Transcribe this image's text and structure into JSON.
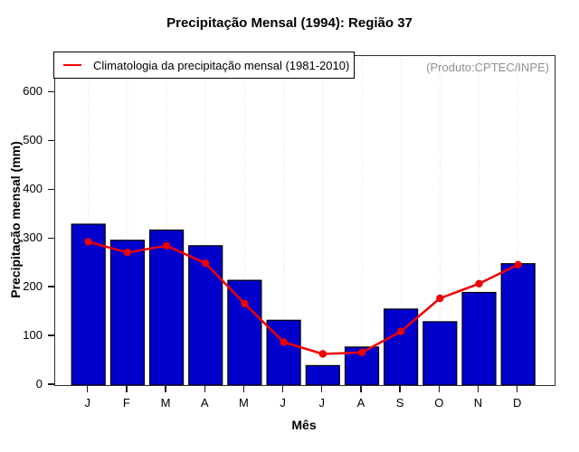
{
  "title": "Precipitação Mensal (1994): Região 37",
  "watermark": "(Produto:CPTEC/INPE)",
  "legend": {
    "label": "Climatologia da precipitação mensal (1981-2010)"
  },
  "colors": {
    "bar_fill": "#0000cd",
    "bar_stroke": "#000000",
    "line": "#ee0000",
    "grid": "#d6d6d6",
    "watermark": "#8f8f8f"
  },
  "chart_data": {
    "type": "bar",
    "title": "Precipitação Mensal (1994): Região 37",
    "xlabel": "Mês",
    "ylabel": "Precipitação mensal (mm)",
    "categories": [
      "J",
      "F",
      "M",
      "A",
      "M",
      "J",
      "J",
      "A",
      "S",
      "O",
      "N",
      "D"
    ],
    "series": [
      {
        "name": "Precipitação mensal 1994",
        "type": "bar",
        "color": "#0000cd",
        "values": [
          330,
          297,
          318,
          286,
          215,
          133,
          40,
          78,
          156,
          130,
          190,
          249
        ]
      },
      {
        "name": "Climatologia da precipitação mensal (1981-2010)",
        "type": "line",
        "color": "#ee0000",
        "values": [
          294,
          272,
          286,
          250,
          167,
          88,
          64,
          67,
          110,
          178,
          208,
          247
        ]
      }
    ],
    "ylim": [
      0,
      675
    ],
    "yticks": [
      0,
      100,
      200,
      300,
      400,
      500,
      600
    ],
    "grid": "vertical-dotted",
    "legend_position": "top-left"
  }
}
